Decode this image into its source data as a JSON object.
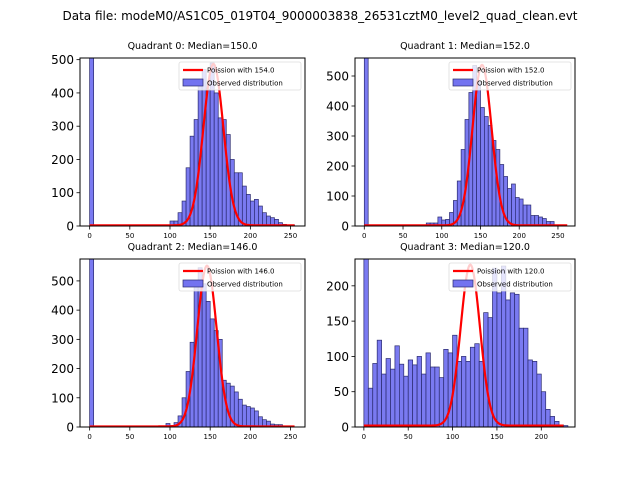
{
  "figure": {
    "suptitle": "Data file: modeM0/AS1C05_019T04_9000003838_26531cztM0_level2_quad_clean.evt"
  },
  "colors": {
    "bar_fill": "#7373f0",
    "bar_edge": "#2a2a6e",
    "poisson_line": "#ff0000"
  },
  "chart_data": [
    {
      "type": "bar",
      "title": "Quadrant 0: Median=150.0",
      "legend": {
        "placement": "top-right",
        "entries": [
          "Poission with 154.0",
          "Observed distribution"
        ]
      },
      "bin_width": 5,
      "xlim": [
        -12,
        268
      ],
      "ylim": [
        0,
        505
      ],
      "xticks": [
        0,
        50,
        100,
        150,
        200,
        250
      ],
      "yticks": [
        0,
        100,
        200,
        300,
        400,
        500
      ],
      "poisson_mean": 154.0,
      "poisson_peak": 485,
      "poisson_xrange": [
        0,
        255
      ],
      "bins": [
        [
          0,
          5000
        ],
        [
          70,
          3
        ],
        [
          75,
          3
        ],
        [
          80,
          3
        ],
        [
          85,
          3
        ],
        [
          90,
          3
        ],
        [
          95,
          3
        ],
        [
          100,
          15
        ],
        [
          105,
          15
        ],
        [
          110,
          40
        ],
        [
          115,
          75
        ],
        [
          120,
          175
        ],
        [
          125,
          270
        ],
        [
          130,
          320
        ],
        [
          135,
          430
        ],
        [
          140,
          470
        ],
        [
          145,
          410
        ],
        [
          150,
          490
        ],
        [
          155,
          400
        ],
        [
          160,
          325
        ],
        [
          165,
          320
        ],
        [
          170,
          275
        ],
        [
          175,
          200
        ],
        [
          180,
          160
        ],
        [
          185,
          160
        ],
        [
          190,
          120
        ],
        [
          195,
          95
        ],
        [
          200,
          75
        ],
        [
          205,
          80
        ],
        [
          210,
          60
        ],
        [
          215,
          40
        ],
        [
          220,
          30
        ],
        [
          225,
          25
        ],
        [
          230,
          20
        ],
        [
          235,
          10
        ],
        [
          240,
          5
        ],
        [
          245,
          3
        ],
        [
          250,
          3
        ]
      ]
    },
    {
      "type": "bar",
      "title": "Quadrant 1: Median=152.0",
      "legend": {
        "placement": "top-right",
        "entries": [
          "Poission with 152.0",
          "Observed distribution"
        ]
      },
      "bin_width": 5,
      "xlim": [
        -12,
        272
      ],
      "ylim": [
        0,
        560
      ],
      "xticks": [
        0,
        50,
        100,
        150,
        200,
        250
      ],
      "yticks": [
        0,
        100,
        200,
        300,
        400,
        500
      ],
      "poisson_mean": 152.0,
      "poisson_peak": 535,
      "poisson_xrange": [
        0,
        262
      ],
      "bins": [
        [
          0,
          5000
        ],
        [
          40,
          3
        ],
        [
          45,
          3
        ],
        [
          60,
          3
        ],
        [
          65,
          3
        ],
        [
          80,
          10
        ],
        [
          85,
          10
        ],
        [
          90,
          10
        ],
        [
          95,
          30
        ],
        [
          100,
          20
        ],
        [
          105,
          22
        ],
        [
          110,
          45
        ],
        [
          115,
          85
        ],
        [
          120,
          150
        ],
        [
          125,
          255
        ],
        [
          130,
          355
        ],
        [
          135,
          445
        ],
        [
          140,
          535
        ],
        [
          145,
          480
        ],
        [
          150,
          395
        ],
        [
          155,
          365
        ],
        [
          160,
          335
        ],
        [
          165,
          285
        ],
        [
          170,
          255
        ],
        [
          175,
          205
        ],
        [
          180,
          165
        ],
        [
          185,
          125
        ],
        [
          190,
          140
        ],
        [
          195,
          95
        ],
        [
          200,
          90
        ],
        [
          205,
          70
        ],
        [
          210,
          70
        ],
        [
          215,
          35
        ],
        [
          220,
          35
        ],
        [
          225,
          30
        ],
        [
          230,
          25
        ],
        [
          235,
          15
        ],
        [
          240,
          15
        ],
        [
          245,
          3
        ],
        [
          255,
          3
        ]
      ]
    },
    {
      "type": "bar",
      "title": "Quadrant 2: Median=146.0",
      "legend": {
        "placement": "top-right",
        "entries": [
          "Poission with 146.0",
          "Observed distribution"
        ]
      },
      "bin_width": 5,
      "xlim": [
        -12,
        268
      ],
      "ylim": [
        0,
        575
      ],
      "xticks": [
        0,
        50,
        100,
        150,
        200,
        250
      ],
      "yticks": [
        0,
        100,
        200,
        300,
        400,
        500
      ],
      "poisson_mean": 146.0,
      "poisson_peak": 550,
      "poisson_xrange": [
        0,
        255
      ],
      "bins": [
        [
          0,
          5000
        ],
        [
          60,
          3
        ],
        [
          70,
          3
        ],
        [
          80,
          3
        ],
        [
          85,
          3
        ],
        [
          90,
          3
        ],
        [
          95,
          12
        ],
        [
          100,
          5
        ],
        [
          105,
          15
        ],
        [
          110,
          38
        ],
        [
          115,
          100
        ],
        [
          120,
          190
        ],
        [
          125,
          290
        ],
        [
          130,
          490
        ],
        [
          135,
          545
        ],
        [
          140,
          490
        ],
        [
          145,
          430
        ],
        [
          150,
          370
        ],
        [
          155,
          330
        ],
        [
          160,
          300
        ],
        [
          165,
          160
        ],
        [
          170,
          150
        ],
        [
          175,
          140
        ],
        [
          180,
          120
        ],
        [
          185,
          95
        ],
        [
          190,
          75
        ],
        [
          195,
          70
        ],
        [
          200,
          65
        ],
        [
          205,
          55
        ],
        [
          210,
          35
        ],
        [
          215,
          25
        ],
        [
          220,
          20
        ],
        [
          225,
          10
        ],
        [
          230,
          8
        ],
        [
          235,
          8
        ],
        [
          240,
          3
        ]
      ]
    },
    {
      "type": "bar",
      "title": "Quadrant 3: Median=120.0",
      "legend": {
        "placement": "top-right",
        "entries": [
          "Poission with 120.0",
          "Observed distribution"
        ]
      },
      "bin_width": 5,
      "xlim": [
        -10,
        238
      ],
      "ylim": [
        0,
        238
      ],
      "xticks": [
        0,
        50,
        100,
        150,
        200
      ],
      "yticks": [
        0,
        50,
        100,
        150,
        200
      ],
      "poisson_mean": 120.0,
      "poisson_peak": 228,
      "poisson_xrange": [
        0,
        225
      ],
      "bins": [
        [
          0,
          1000
        ],
        [
          5,
          55
        ],
        [
          10,
          90
        ],
        [
          15,
          123
        ],
        [
          20,
          75
        ],
        [
          25,
          97
        ],
        [
          30,
          82
        ],
        [
          35,
          115
        ],
        [
          40,
          89
        ],
        [
          45,
          72
        ],
        [
          50,
          95
        ],
        [
          55,
          88
        ],
        [
          60,
          100
        ],
        [
          65,
          75
        ],
        [
          70,
          105
        ],
        [
          75,
          85
        ],
        [
          80,
          85
        ],
        [
          85,
          70
        ],
        [
          90,
          110
        ],
        [
          95,
          105
        ],
        [
          100,
          130
        ],
        [
          105,
          93
        ],
        [
          110,
          100
        ],
        [
          115,
          93
        ],
        [
          120,
          113
        ],
        [
          125,
          118
        ],
        [
          130,
          93
        ],
        [
          135,
          162
        ],
        [
          140,
          155
        ],
        [
          145,
          225
        ],
        [
          150,
          190
        ],
        [
          155,
          228
        ],
        [
          160,
          180
        ],
        [
          165,
          190
        ],
        [
          170,
          188
        ],
        [
          175,
          140
        ],
        [
          180,
          140
        ],
        [
          185,
          95
        ],
        [
          190,
          93
        ],
        [
          195,
          75
        ],
        [
          200,
          50
        ],
        [
          205,
          25
        ],
        [
          210,
          15
        ],
        [
          215,
          8
        ],
        [
          220,
          3
        ],
        [
          225,
          2
        ]
      ]
    }
  ]
}
